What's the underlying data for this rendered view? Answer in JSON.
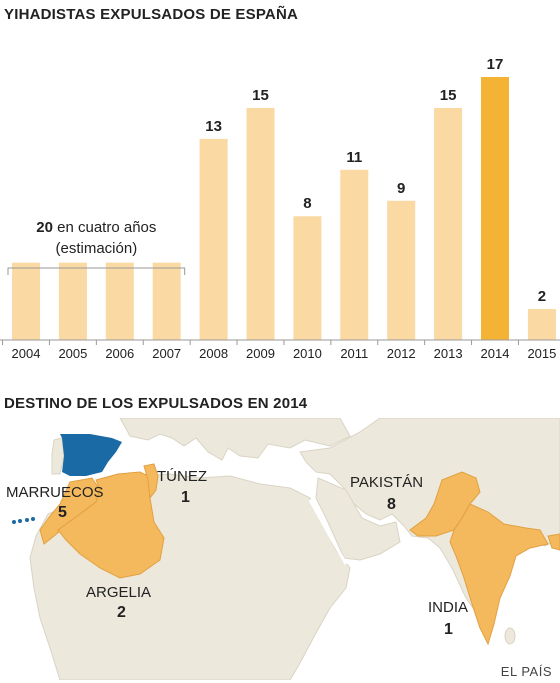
{
  "chart_title": "YIHADISTAS EXPULSADOS DE ESPAÑA",
  "map_title": "DESTINO DE LOS EXPULSADOS EN 2014",
  "credit": "EL PAÍS",
  "colors": {
    "bar": "#fad9a2",
    "highlight": "#f5b335",
    "land": "#ece8dc",
    "sea": "#ffffff",
    "destination": "#f4b95c",
    "spain": "#1a6aa6"
  },
  "chart_data": {
    "type": "bar",
    "categories": [
      "2004",
      "2005",
      "2006",
      "2007",
      "2008",
      "2009",
      "2010",
      "2011",
      "2012",
      "2013",
      "2014",
      "2015"
    ],
    "values": [
      5,
      5,
      5,
      5,
      13,
      15,
      8,
      11,
      9,
      15,
      17,
      2
    ],
    "data_labels": [
      "",
      "",
      "",
      "",
      "13",
      "15",
      "8",
      "11",
      "9",
      "15",
      "17",
      "2"
    ],
    "highlight_category": "2014",
    "ylim": [
      0,
      17
    ],
    "annotation": {
      "value": "20",
      "text": "en cuatro años",
      "line2": "(estimación)",
      "covers": [
        "2004",
        "2005",
        "2006",
        "2007"
      ]
    }
  },
  "map": {
    "countries": [
      {
        "id": "marruecos",
        "name": "MARRUECOS",
        "value": "5"
      },
      {
        "id": "tunez",
        "name": "TÚNEZ",
        "value": "1"
      },
      {
        "id": "argelia",
        "name": "ARGELIA",
        "value": "2"
      },
      {
        "id": "pakistan",
        "name": "PAKISTÁN",
        "value": "8"
      },
      {
        "id": "india",
        "name": "INDIA",
        "value": "1"
      }
    ]
  }
}
